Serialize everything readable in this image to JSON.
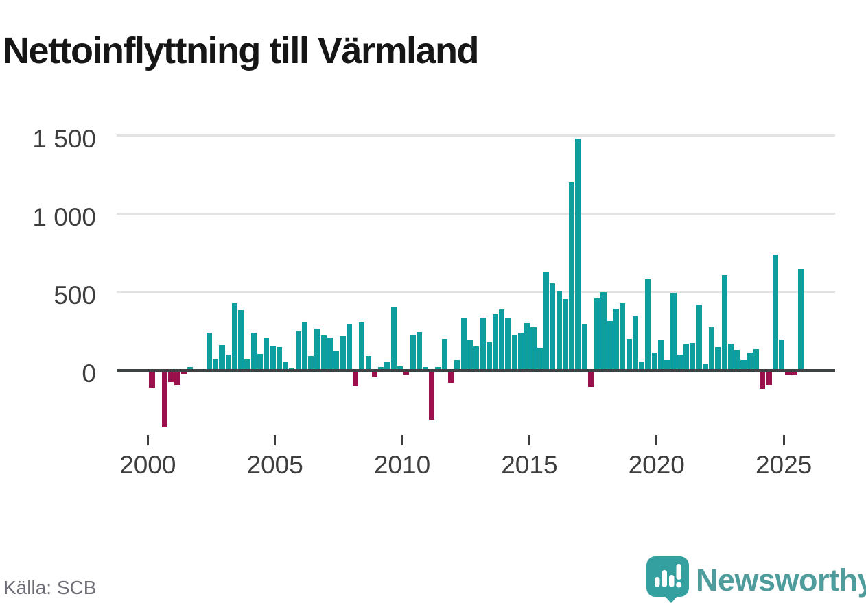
{
  "header": {
    "title": "Nettoinflyttning till Värmland"
  },
  "footer": {
    "source_label": "Källa: SCB",
    "brand_name": "Newsworthy"
  },
  "colors": {
    "positive_bar": "#0e9e9e",
    "negative_bar": "#99104d",
    "axis_line": "#3f4243",
    "gridline": "#e3e3e3",
    "axis_text": "#3e3e3e",
    "source_text": "#6e6e76",
    "brand_teal": "#35a0a0",
    "wordmark_teal": "#4e9c9c"
  },
  "chart_data": {
    "type": "bar",
    "title": "Nettoinflyttning till Värmland",
    "xlabel": "",
    "ylabel": "",
    "frequency": "quarterly",
    "x_range": [
      "2000 Q1",
      "2025 Q3"
    ],
    "ylim": [
      -420,
      1560
    ],
    "grid": "horizontal",
    "legend": "none",
    "y_axis": [
      {
        "value": 1500,
        "label": "1 500"
      },
      {
        "value": 1000,
        "label": "1 000"
      },
      {
        "value": 500,
        "label": "500"
      },
      {
        "value": 0,
        "label": "0"
      }
    ],
    "x_axis": [
      {
        "year": 2000,
        "label": "2000"
      },
      {
        "year": 2005,
        "label": "2005"
      },
      {
        "year": 2010,
        "label": "2010"
      },
      {
        "year": 2015,
        "label": "2015"
      },
      {
        "year": 2020,
        "label": "2020"
      },
      {
        "year": 2025,
        "label": "2025"
      }
    ],
    "series_by_year": [
      {
        "year": 2000,
        "values": [
          -110,
          0,
          -367,
          -77
        ]
      },
      {
        "year": 2001,
        "values": [
          -93,
          -24,
          20,
          0
        ]
      },
      {
        "year": 2002,
        "values": [
          0,
          239,
          69,
          159
        ]
      },
      {
        "year": 2003,
        "values": [
          100,
          430,
          386,
          70
        ]
      },
      {
        "year": 2004,
        "values": [
          237,
          105,
          205,
          155
        ]
      },
      {
        "year": 2005,
        "values": [
          147,
          51,
          11,
          249
        ]
      },
      {
        "year": 2006,
        "values": [
          305,
          89,
          266,
          220
        ]
      },
      {
        "year": 2007,
        "values": [
          207,
          119,
          219,
          295
        ]
      },
      {
        "year": 2008,
        "values": [
          -103,
          306,
          90,
          -40
        ]
      },
      {
        "year": 2009,
        "values": [
          19,
          54,
          400,
          26
        ]
      },
      {
        "year": 2010,
        "values": [
          -28,
          228,
          242,
          20
        ]
      },
      {
        "year": 2011,
        "values": [
          -316,
          18,
          200,
          -79
        ]
      },
      {
        "year": 2012,
        "values": [
          64,
          333,
          189,
          151
        ]
      },
      {
        "year": 2013,
        "values": [
          335,
          179,
          357,
          389
        ]
      },
      {
        "year": 2014,
        "values": [
          332,
          226,
          241,
          302
        ]
      },
      {
        "year": 2015,
        "values": [
          274,
          142,
          625,
          553
        ]
      },
      {
        "year": 2016,
        "values": [
          506,
          453,
          1200,
          1480
        ]
      },
      {
        "year": 2017,
        "values": [
          290,
          -109,
          459,
          500
        ]
      },
      {
        "year": 2018,
        "values": [
          315,
          393,
          428,
          198
        ]
      },
      {
        "year": 2019,
        "values": [
          349,
          56,
          583,
          110
        ]
      },
      {
        "year": 2020,
        "values": [
          189,
          63,
          494,
          98
        ]
      },
      {
        "year": 2021,
        "values": [
          163,
          175,
          421,
          41
        ]
      },
      {
        "year": 2022,
        "values": [
          275,
          148,
          610,
          167
        ]
      },
      {
        "year": 2023,
        "values": [
          128,
          63,
          113,
          135
        ]
      },
      {
        "year": 2024,
        "values": [
          -119,
          -95,
          740,
          197
        ]
      },
      {
        "year": 2025,
        "values": [
          -34,
          -31,
          647
        ]
      }
    ]
  }
}
